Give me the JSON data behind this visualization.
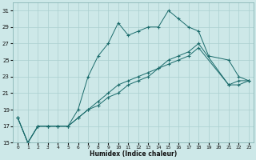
{
  "xlabel": "Humidex (Indice chaleur)",
  "background_color": "#cde8e8",
  "grid_color": "#aacfcf",
  "line_color": "#1a6b6b",
  "ylim": [
    15,
    32
  ],
  "xlim": [
    -0.5,
    23.5
  ],
  "yticks": [
    15,
    17,
    19,
    21,
    23,
    25,
    27,
    29,
    31
  ],
  "xticks": [
    0,
    1,
    2,
    3,
    4,
    5,
    6,
    7,
    8,
    9,
    10,
    11,
    12,
    13,
    14,
    15,
    16,
    17,
    18,
    19,
    20,
    21,
    22,
    23
  ],
  "line1_x": [
    0,
    1,
    2,
    3,
    4,
    5,
    6,
    7,
    8,
    9,
    10,
    11,
    12,
    13,
    14,
    15,
    16,
    17,
    18,
    19,
    21,
    22,
    23
  ],
  "line1_y": [
    18,
    15,
    17,
    17,
    17,
    17,
    19,
    23,
    25.5,
    27,
    29.5,
    28,
    28.5,
    29,
    29,
    31,
    30,
    29,
    28.5,
    25.5,
    25,
    23,
    22.5
  ],
  "line2_x": [
    0,
    1,
    2,
    3,
    4,
    5,
    6,
    7,
    8,
    9,
    10,
    11,
    12,
    13,
    14,
    15,
    16,
    17,
    18,
    21,
    22,
    23
  ],
  "line2_y": [
    18,
    15,
    17,
    17,
    17,
    17,
    18,
    19,
    20,
    21,
    22,
    22.5,
    23,
    23.5,
    24,
    25,
    25.5,
    26,
    27,
    22,
    22.5,
    22.5
  ],
  "line3_x": [
    0,
    1,
    2,
    3,
    4,
    5,
    6,
    7,
    8,
    9,
    10,
    11,
    12,
    13,
    14,
    15,
    16,
    17,
    18,
    21,
    22,
    23
  ],
  "line3_y": [
    18,
    15,
    17,
    17,
    17,
    17,
    18,
    19,
    19.5,
    20.5,
    21,
    22,
    22.5,
    23,
    24,
    24.5,
    25,
    25.5,
    26.5,
    22,
    22,
    22.5
  ]
}
